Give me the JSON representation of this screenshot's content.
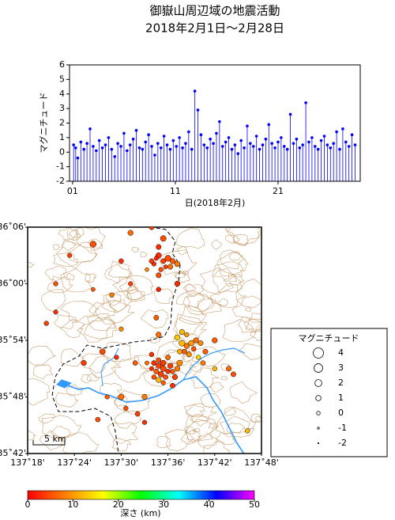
{
  "chart_data": [
    {
      "type": "stem",
      "title": "御嶽山周辺域の地震活動",
      "subtitle": "2018年2月1日～2月28日",
      "ylabel": "マグニチュード",
      "xlabel": "日(2018年2月)",
      "xlim": [
        0.7,
        29
      ],
      "xticks": [
        {
          "value": 1,
          "label": "01"
        },
        11,
        21
      ],
      "ylim": [
        -2,
        6
      ],
      "yticks": [
        -2,
        -1,
        0,
        1,
        2,
        3,
        4,
        5,
        6
      ],
      "series": [
        {
          "name": "マグニチュード",
          "color": "#0000ff",
          "x": [
            1.1,
            1.3,
            1.5,
            1.8,
            2.1,
            2.4,
            2.7,
            3.0,
            3.3,
            3.6,
            3.9,
            4.2,
            4.5,
            4.8,
            5.1,
            5.4,
            5.7,
            6.0,
            6.3,
            6.6,
            6.9,
            7.2,
            7.5,
            7.8,
            8.1,
            8.4,
            8.7,
            9.0,
            9.3,
            9.6,
            9.9,
            10.2,
            10.5,
            10.8,
            11.1,
            11.4,
            11.7,
            12.0,
            12.3,
            12.6,
            12.9,
            13.2,
            13.5,
            13.8,
            14.1,
            14.4,
            14.7,
            15.0,
            15.3,
            15.6,
            15.9,
            16.2,
            16.5,
            16.8,
            17.1,
            17.4,
            17.7,
            18.0,
            18.3,
            18.6,
            18.9,
            19.2,
            19.5,
            19.8,
            20.1,
            20.4,
            20.7,
            21.0,
            21.3,
            21.6,
            21.9,
            22.2,
            22.5,
            22.8,
            23.1,
            23.4,
            23.7,
            24.0,
            24.3,
            24.6,
            24.9,
            25.2,
            25.5,
            25.8,
            26.1,
            26.4,
            26.7,
            27.0,
            27.3,
            27.6,
            27.9,
            28.2,
            28.5
          ],
          "values": [
            0.5,
            0.3,
            -0.4,
            0.7,
            0.2,
            0.6,
            1.6,
            0.4,
            0.1,
            0.8,
            0.3,
            0.5,
            1.0,
            0.2,
            -0.3,
            0.6,
            0.4,
            1.3,
            0.1,
            0.5,
            0.9,
            1.5,
            0.3,
            0.2,
            0.7,
            1.2,
            0.4,
            -0.2,
            0.6,
            0.3,
            1.1,
            0.5,
            0.2,
            0.8,
            0.4,
            1.0,
            0.3,
            0.6,
            1.4,
            0.2,
            4.2,
            2.9,
            1.2,
            0.5,
            0.3,
            0.9,
            0.6,
            1.3,
            2.1,
            0.4,
            0.7,
            1.0,
            0.2,
            0.5,
            -0.1,
            0.8,
            0.3,
            1.8,
            0.6,
            0.4,
            1.1,
            0.2,
            0.5,
            0.9,
            1.9,
            0.6,
            0.3,
            0.7,
            1.0,
            0.4,
            0.2,
            2.6,
            0.6,
            0.9,
            0.3,
            0.5,
            3.4,
            0.7,
            1.0,
            0.4,
            0.2,
            0.8,
            1.1,
            0.5,
            0.3,
            0.6,
            1.4,
            0.2,
            1.6,
            0.7,
            0.4,
            1.2,
            0.5
          ]
        }
      ]
    },
    {
      "type": "map",
      "xlim": [
        137.3,
        137.8
      ],
      "xticks": [
        {
          "value": 137.3,
          "label": "137˚18'"
        },
        {
          "value": 137.4,
          "label": "137˚24'"
        },
        {
          "value": 137.5,
          "label": "137˚30'"
        },
        {
          "value": 137.6,
          "label": "137˚36'"
        },
        {
          "value": 137.7,
          "label": "137˚42'"
        },
        {
          "value": 137.8,
          "label": "137˚48'"
        }
      ],
      "ylim": [
        35.7,
        36.1
      ],
      "yticks": [
        {
          "value": 35.7,
          "label": "35˚42'"
        },
        {
          "value": 35.8,
          "label": "35˚48'"
        },
        {
          "value": 35.9,
          "label": "35˚54'"
        },
        {
          "value": 36.0,
          "label": "36˚00'"
        },
        {
          "value": 36.1,
          "label": "36˚06'"
        }
      ],
      "scale_label": "5 km",
      "legend_title": "マグニチュード",
      "legend_magnitudes": [
        4,
        3,
        2,
        1,
        0,
        -1,
        -2
      ],
      "colormap": [
        "#ff0000",
        "#ff8000",
        "#ffff00",
        "#00ff00",
        "#00ffff",
        "#0000ff",
        "#ff00ff"
      ],
      "colorbar": {
        "label": "深さ (km)",
        "lim": [
          0,
          50
        ],
        "ticks": [
          0,
          10,
          20,
          30,
          40,
          50
        ]
      },
      "events": {
        "x": [
          137.58,
          137.59,
          137.6,
          137.57,
          137.61,
          137.595,
          137.585,
          137.605,
          137.575,
          137.565,
          137.62,
          137.58,
          137.59,
          137.555,
          137.57,
          137.58,
          137.59,
          137.6,
          137.575,
          137.585,
          137.595,
          137.605,
          137.61,
          137.565,
          137.58,
          137.59,
          137.6,
          137.57,
          137.615,
          137.62,
          137.59,
          137.555,
          137.565,
          137.625,
          137.58,
          137.61,
          137.63,
          137.64,
          137.65,
          137.635,
          137.645,
          137.655,
          137.62,
          137.625,
          137.66,
          137.67,
          137.665,
          137.68,
          137.675,
          137.64,
          137.63,
          137.44,
          137.39,
          137.36,
          137.34,
          137.36,
          137.44,
          137.48,
          137.5,
          137.52,
          137.58,
          137.62,
          137.58,
          137.575,
          137.58,
          137.46,
          137.49,
          137.42,
          137.53,
          137.55,
          137.51,
          137.5,
          137.535,
          137.47,
          137.55,
          137.45,
          137.77,
          137.74,
          137.73,
          137.7,
          137.7,
          137.52,
          137.565,
          137.5
        ],
        "y": [
          36.05,
          36.04,
          36.045,
          36.035,
          36.04,
          36.03,
          36.025,
          36.03,
          36.045,
          36.04,
          36.035,
          36.065,
          36.08,
          36.025,
          35.86,
          35.855,
          35.85,
          35.845,
          35.845,
          35.84,
          35.835,
          35.855,
          35.845,
          35.85,
          35.865,
          35.86,
          35.87,
          35.835,
          35.835,
          35.85,
          35.825,
          35.86,
          35.875,
          35.86,
          35.83,
          35.82,
          35.895,
          35.89,
          35.895,
          35.88,
          35.875,
          35.885,
          35.905,
          35.88,
          35.9,
          35.895,
          35.87,
          35.88,
          35.86,
          35.91,
          35.915,
          36.07,
          36.05,
          35.95,
          35.93,
          36.0,
          35.99,
          35.98,
          36.04,
          36.0,
          35.99,
          36.0,
          36.015,
          35.94,
          35.91,
          35.88,
          35.87,
          35.86,
          35.86,
          35.8,
          35.78,
          35.8,
          35.77,
          35.8,
          35.755,
          35.76,
          35.74,
          35.84,
          35.85,
          35.9,
          35.85,
          36.09,
          36.1,
          35.92
        ],
        "depth": [
          3,
          4,
          5,
          3,
          6,
          4,
          5,
          7,
          2,
          4,
          8,
          3,
          5,
          9,
          3,
          4,
          5,
          3,
          6,
          4,
          5,
          4,
          6,
          3,
          5,
          4,
          7,
          5,
          4,
          8,
          6,
          7,
          3,
          9,
          12,
          3,
          12,
          8,
          10,
          6,
          9,
          5,
          13,
          11,
          7,
          9,
          14,
          6,
          8,
          10,
          12,
          5,
          4,
          3,
          4,
          5,
          6,
          8,
          3,
          4,
          2,
          3,
          5,
          6,
          7,
          5,
          3,
          4,
          6,
          8,
          5,
          7,
          4,
          6,
          3,
          5,
          12,
          5,
          7,
          6,
          12,
          7,
          4,
          9
        ],
        "magnitude": [
          1.2,
          0.8,
          1.5,
          0.5,
          1.0,
          0.3,
          0.6,
          0.9,
          0.4,
          0.7,
          1.1,
          0.9,
          1.3,
          0.2,
          0.8,
          1.0,
          1.3,
          0.6,
          0.9,
          1.2,
          0.7,
          1.0,
          0.5,
          0.4,
          0.7,
          1.1,
          0.8,
          0.6,
          0.9,
          1.0,
          0.5,
          0.3,
          0.6,
          1.2,
          1.0,
          0.8,
          1.4,
          1.0,
          1.2,
          0.8,
          0.9,
          0.6,
          1.1,
          0.7,
          1.0,
          0.8,
          0.6,
          0.9,
          0.7,
          0.5,
          0.9,
          1.5,
          0.4,
          0.5,
          0.6,
          0.5,
          0.3,
          0.6,
          0.7,
          0.5,
          0.6,
          1.0,
          0.9,
          0.8,
          1.0,
          1.2,
          0.5,
          1.0,
          0.7,
          1.0,
          0.6,
          1.3,
          0.7,
          0.4,
          0.5,
          0.7,
          0.6,
          0.8,
          0.9,
          1.0,
          0.6,
          1.0,
          0.9,
          0.5
        ]
      }
    }
  ]
}
